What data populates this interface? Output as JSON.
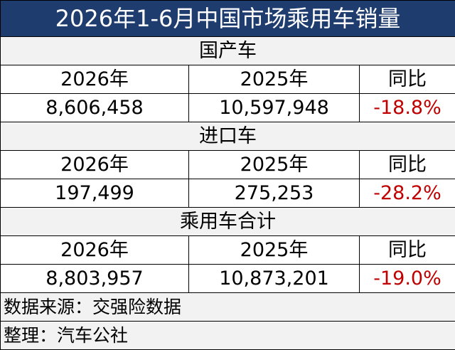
{
  "title": "2026年1-6月中国市场乘用车销量",
  "sections": [
    {
      "name": "国产车",
      "headers": [
        "2026年",
        "2025年",
        "同比"
      ],
      "values": [
        "8,606,458",
        "10,597,948",
        "-18.8%"
      ]
    },
    {
      "name": "进口车",
      "headers": [
        "2026年",
        "2025年",
        "同比"
      ],
      "values": [
        "197,499",
        "275,253",
        "-28.2%"
      ]
    },
    {
      "name": "乘用车合计",
      "headers": [
        "2026年",
        "2025年",
        "同比"
      ],
      "values": [
        "8,803,957",
        "10,873,201",
        "-19.0%"
      ]
    }
  ],
  "source": "数据来源：交强险数据",
  "credit": "整理：汽车公社"
}
